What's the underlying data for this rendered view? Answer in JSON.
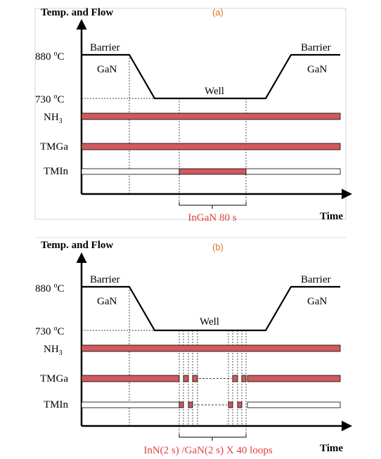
{
  "colors": {
    "axis": "#000000",
    "flow_on": "#d05a5e",
    "flow_off": "#ffffff",
    "guide": "#000000",
    "frame": "#cccccc",
    "label_red": "#e04040",
    "panel_label": "#e07020"
  },
  "panels": [
    {
      "panel_label": "(a)",
      "y_axis_label": "Temp. and Flow",
      "x_axis_label": "Time",
      "temp_high": "880",
      "temp_low": "730",
      "temp_unit_sup": "o",
      "temp_unit": "C",
      "left_barrier": "Barrier",
      "left_gan": "GaN",
      "well": "Well",
      "right_barrier": "Barrier",
      "right_gan": "GaN",
      "nh3_base": "NH",
      "nh3_sub": "3",
      "tmga": "TMGa",
      "tmin": "TMIn",
      "annotation": "InGaN 80 s"
    },
    {
      "panel_label": "(b)",
      "y_axis_label": "Temp. and Flow",
      "x_axis_label": "Time",
      "temp_high": "880",
      "temp_low": "730",
      "temp_unit_sup": "o",
      "temp_unit": "C",
      "left_barrier": "Barrier",
      "left_gan": "GaN",
      "well": "Well",
      "right_barrier": "Barrier",
      "right_gan": "GaN",
      "nh3_base": "NH",
      "nh3_sub": "3",
      "tmga": "TMGa",
      "tmin": "TMIn",
      "annotation": "InN(2 s) /GaN(2 s) X 40 loops"
    }
  ]
}
